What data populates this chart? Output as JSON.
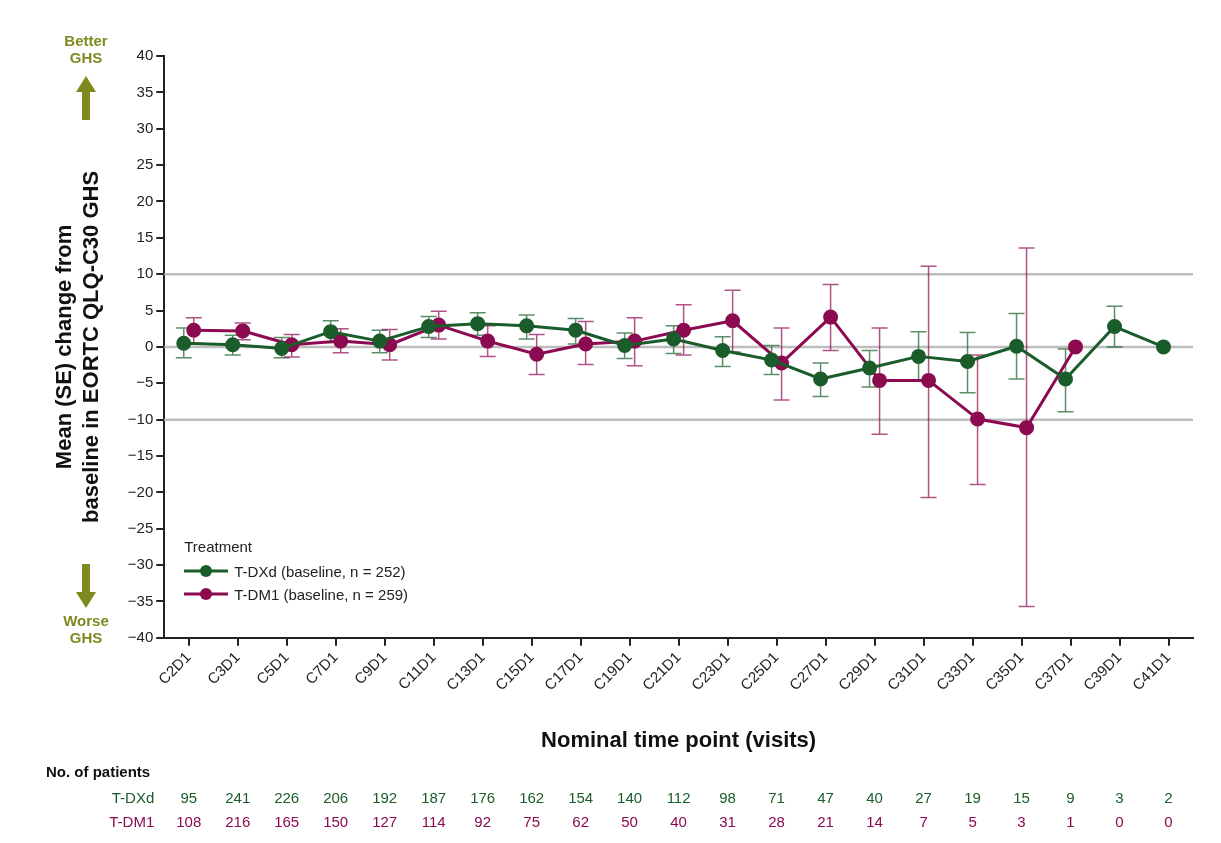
{
  "chart_data": {
    "type": "line",
    "xlabel": "Nominal time point (visits)",
    "ylabel": "Mean (SE) change from baseline in EORTC QLQ-C30 GHS",
    "legend_title": "Treatment",
    "legend": "bottom left",
    "marker": "circle",
    "line_style": "solid",
    "grid": false,
    "categories": [
      "C2D1",
      "C3D1",
      "C5D1",
      "C7D1",
      "C9D1",
      "C11D1",
      "C13D1",
      "C15D1",
      "C17D1",
      "C19D1",
      "C21D1",
      "C23D1",
      "C25D1",
      "C27D1",
      "C29D1",
      "C31D1",
      "C33D1",
      "C35D1",
      "C37D1",
      "C39D1",
      "C41D1"
    ],
    "ylim": [
      -40,
      40
    ],
    "yticks": [
      {
        "value": -40,
        "label": "−40"
      },
      {
        "value": -35,
        "label": "−35"
      },
      {
        "value": -30,
        "label": "−30"
      },
      {
        "value": -25,
        "label": "−25"
      },
      {
        "value": -20,
        "label": "−20"
      },
      {
        "value": -15,
        "label": "−15"
      },
      {
        "value": -10,
        "label": "−10"
      },
      {
        "value": -5,
        "label": "−5"
      },
      0,
      5,
      10,
      15,
      20,
      25,
      30,
      35,
      40
    ],
    "ref_lines": [
      {
        "axis": "y",
        "value": 10,
        "color": "#bdbdbd"
      },
      {
        "axis": "y",
        "value": 0,
        "color": "#bdbdbd"
      },
      {
        "axis": "y",
        "value": -10,
        "color": "#bdbdbd"
      }
    ],
    "series": [
      {
        "name": "T-DXd (baseline, n = 252)",
        "color": "#1a5c2a",
        "values": [
          0.5,
          0.3,
          -0.2,
          2.1,
          0.8,
          2.8,
          3.2,
          2.9,
          2.3,
          0.2,
          1.1,
          -0.5,
          -1.8,
          -4.4,
          -2.9,
          -1.3,
          -2.0,
          0.1,
          -4.4,
          2.8,
          0
        ],
        "errors": [
          [
            -1.5,
            2.6
          ],
          [
            -1.1,
            1.6
          ],
          [
            -1.5,
            1.3
          ],
          [
            0.6,
            3.6
          ],
          [
            -0.8,
            2.3
          ],
          [
            1.3,
            4.2
          ],
          [
            1.6,
            4.7
          ],
          [
            1.1,
            4.4
          ],
          [
            0.4,
            3.9
          ],
          [
            -1.6,
            1.9
          ],
          [
            -0.9,
            2.9
          ],
          [
            -2.7,
            1.4
          ],
          [
            -3.8,
            0.2
          ],
          [
            -6.8,
            -2.2
          ],
          [
            -5.5,
            -0.5
          ],
          [
            -4.5,
            2.1
          ],
          [
            -6.3,
            2.0
          ],
          [
            -4.4,
            4.6
          ],
          [
            -8.9,
            -0.3
          ],
          [
            0,
            5.6
          ],
          null
        ]
      },
      {
        "name": "T-DM1 (baseline, n = 259)",
        "color": "#8b0a50",
        "values": [
          2.3,
          2.2,
          0.3,
          0.8,
          0.3,
          3.0,
          0.8,
          -1.0,
          0.4,
          0.8,
          2.3,
          3.6,
          -2.2,
          4.1,
          -4.6,
          -4.6,
          -9.9,
          -11.1,
          0,
          null,
          null
        ],
        "errors": [
          [
            0.5,
            4.0
          ],
          [
            1.0,
            3.3
          ],
          [
            -1.4,
            1.7
          ],
          [
            -0.8,
            2.5
          ],
          [
            -1.8,
            2.4
          ],
          [
            1.1,
            4.9
          ],
          [
            -1.3,
            2.9
          ],
          [
            -3.8,
            1.7
          ],
          [
            -2.4,
            3.5
          ],
          [
            -2.6,
            4.0
          ],
          [
            -1.1,
            5.8
          ],
          [
            -0.7,
            7.8
          ],
          [
            -7.3,
            2.6
          ],
          [
            -0.5,
            8.6
          ],
          [
            -12.0,
            2.6
          ],
          [
            -20.7,
            11.1
          ],
          [
            -18.9,
            -1.1
          ],
          [
            -35.7,
            13.6
          ],
          null,
          null,
          null
        ]
      }
    ],
    "annotations": [
      "Better GHS",
      "Worse GHS",
      "No. of patients",
      "T-DXd",
      "T-DM1",
      "95",
      "241",
      "226",
      "206",
      "192",
      "187",
      "176",
      "162",
      "154",
      "140",
      "112",
      "98",
      "71",
      "47",
      "40",
      "27",
      "19",
      "15",
      "9",
      "3",
      "2",
      "108",
      "216",
      "165",
      "150",
      "127",
      "114",
      "92",
      "75",
      "62",
      "50",
      "40",
      "31",
      "28",
      "21",
      "14",
      "7",
      "5",
      "3",
      "1",
      "0",
      "0"
    ]
  }
}
